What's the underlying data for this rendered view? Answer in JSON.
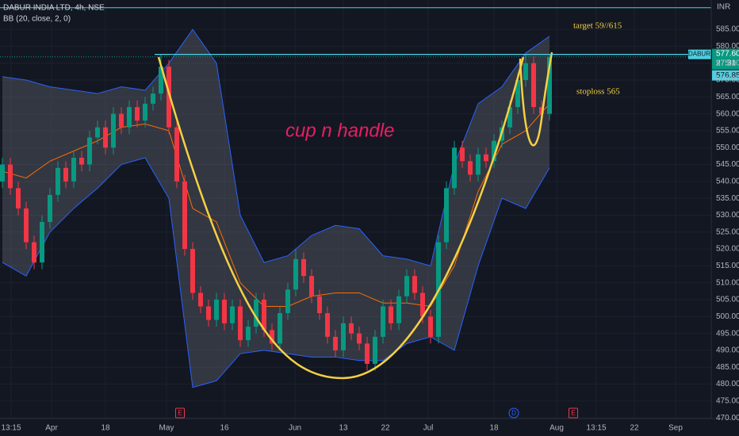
{
  "chart_data": {
    "type": "candlestick",
    "title": "DABUR INDIA LTD, 4h, NSE",
    "subtitle": "BB (20, close, 2, 0)",
    "currency": "INR",
    "annotations": {
      "target": "target 59//615",
      "stoploss": "stoploss 565",
      "pattern": "cup n handle"
    },
    "colors": {
      "up": "#089981",
      "down": "#f23645",
      "band": "#2962ff",
      "band_fill": "#787b86",
      "basis": "#ff6d00",
      "level": "#4dd0e1",
      "pattern": "#f5d142"
    },
    "grid": true,
    "xlim": [
      -0.3,
      89.4
    ],
    "ylim": [
      469.8,
      593.7
    ],
    "xticks": [
      {
        "value": 1.1,
        "label": "13:15"
      },
      {
        "value": 6.2,
        "label": "Apr"
      },
      {
        "value": 13,
        "label": "18"
      },
      {
        "value": 20.7,
        "label": "May"
      },
      {
        "value": 28,
        "label": "16"
      },
      {
        "value": 36.9,
        "label": "Jun"
      },
      {
        "value": 43,
        "label": "13"
      },
      {
        "value": 48.3,
        "label": "22"
      },
      {
        "value": 53.7,
        "label": "Jul"
      },
      {
        "value": 62,
        "label": "18"
      },
      {
        "value": 69.9,
        "label": "Aug"
      },
      {
        "value": 74.9,
        "label": "13:15"
      },
      {
        "value": 79.7,
        "label": "22"
      },
      {
        "value": 84.9,
        "label": "Sep"
      }
    ],
    "yticks": [
      {
        "value": 470,
        "label": "470.00"
      },
      {
        "value": 475,
        "label": "475.00"
      },
      {
        "value": 480,
        "label": "480.00"
      },
      {
        "value": 485,
        "label": "485.00"
      },
      {
        "value": 490,
        "label": "490.00"
      },
      {
        "value": 495,
        "label": "495.00"
      },
      {
        "value": 500,
        "label": "500.00"
      },
      {
        "value": 505,
        "label": "505.00"
      },
      {
        "value": 510,
        "label": "510.00"
      },
      {
        "value": 515,
        "label": "515.00"
      },
      {
        "value": 520,
        "label": "520.00"
      },
      {
        "value": 525,
        "label": "525.00"
      },
      {
        "value": 530,
        "label": "530.00"
      },
      {
        "value": 535,
        "label": "535.00"
      },
      {
        "value": 540,
        "label": "540.00"
      },
      {
        "value": 545,
        "label": "545.00"
      },
      {
        "value": 550,
        "label": "550.00"
      },
      {
        "value": 555,
        "label": "555.00"
      },
      {
        "value": 560,
        "label": "560.00"
      },
      {
        "value": 565,
        "label": "565.00"
      },
      {
        "value": 570,
        "label": "570.00"
      },
      {
        "value": 575,
        "label": "575.00"
      },
      {
        "value": 580,
        "label": "580.00"
      },
      {
        "value": 585,
        "label": "585.00"
      }
    ],
    "candles": {
      "open": [
        540,
        545,
        538,
        532,
        522,
        516,
        528,
        536,
        544,
        540,
        547,
        545,
        553,
        556,
        550,
        560,
        556,
        562,
        558,
        563,
        566,
        574,
        556,
        540,
        520,
        507,
        503,
        499,
        505,
        498,
        503,
        493,
        497,
        505,
        496,
        492,
        501,
        508,
        517,
        512,
        506,
        501,
        494,
        490,
        498,
        495,
        492,
        486,
        494,
        503,
        498,
        506,
        512,
        507,
        500,
        494,
        522,
        538,
        550,
        546,
        542,
        548,
        546,
        552,
        556,
        562,
        570,
        575,
        562,
        560
      ],
      "high": [
        547,
        547,
        540,
        534,
        524,
        530,
        538,
        546,
        546,
        549,
        549,
        555,
        558,
        558,
        562,
        562,
        564,
        564,
        565,
        568,
        577.5,
        576,
        558,
        542,
        522,
        509,
        505,
        507,
        507,
        505,
        505,
        499,
        507,
        507,
        498,
        503,
        510,
        520,
        519,
        514,
        508,
        503,
        496,
        500,
        500,
        497,
        494,
        496,
        505,
        505,
        508,
        514,
        514,
        509,
        502,
        524,
        540,
        552,
        552,
        548,
        550,
        550,
        554,
        558,
        564,
        572,
        577.5,
        577,
        564,
        577.6
      ],
      "low": [
        538,
        536,
        530,
        520,
        514,
        514,
        526,
        534,
        538,
        538,
        543,
        543,
        551,
        548,
        548,
        554,
        554,
        556,
        556,
        561,
        564,
        554,
        538,
        518,
        505,
        501,
        497,
        497,
        496,
        496,
        491,
        491,
        495,
        494,
        490,
        490,
        499,
        506,
        510,
        504,
        499,
        492,
        488,
        488,
        493,
        490,
        484,
        484,
        492,
        496,
        496,
        504,
        505,
        498,
        492,
        492,
        520,
        536,
        544,
        540,
        540,
        544,
        544,
        550,
        554,
        560,
        568,
        560,
        558,
        558
      ],
      "close": [
        545,
        538,
        532,
        522,
        516,
        528,
        536,
        544,
        540,
        547,
        545,
        553,
        556,
        550,
        560,
        556,
        562,
        558,
        563,
        566,
        574,
        556,
        540,
        520,
        507,
        503,
        499,
        505,
        498,
        503,
        493,
        497,
        505,
        496,
        492,
        501,
        508,
        517,
        512,
        506,
        501,
        494,
        490,
        498,
        495,
        492,
        486,
        494,
        503,
        498,
        506,
        512,
        507,
        500,
        494,
        522,
        538,
        550,
        546,
        542,
        548,
        546,
        552,
        556,
        562,
        570,
        575,
        562,
        560,
        576.85
      ]
    },
    "bb": {
      "x": [
        0,
        3,
        6,
        9,
        12,
        15,
        18,
        21,
        24,
        27,
        30,
        33,
        36,
        39,
        42,
        45,
        48,
        51,
        54,
        57,
        60,
        63,
        66,
        69
      ],
      "upper": [
        571,
        570,
        568,
        567,
        566,
        568,
        567,
        575,
        585,
        575,
        530,
        516,
        518,
        524,
        527,
        526,
        518,
        517,
        515,
        545,
        563,
        568,
        578,
        583
      ],
      "basis": [
        543,
        541,
        546,
        549,
        552,
        556,
        557,
        555,
        532,
        528,
        510,
        503,
        503,
        506,
        507,
        507,
        504,
        504,
        503,
        515,
        537,
        551,
        555,
        563
      ],
      "lower": [
        516,
        512,
        525,
        532,
        538,
        545,
        547,
        535,
        479,
        481,
        489,
        490,
        489,
        488,
        488,
        487,
        487,
        492,
        494,
        490,
        515,
        535,
        532,
        544
      ]
    },
    "level": {
      "value": 577.6,
      "label": "577.60",
      "symbol": "DABUR",
      "start": 19.2
    },
    "top_line": 591.4,
    "countdown": "27:31",
    "last_price": {
      "value": 576.85,
      "label": "576.85"
    },
    "events": [
      {
        "label": "E",
        "x": 22.4
      },
      {
        "label": "D",
        "x": 64.5
      },
      {
        "label": "E",
        "x": 72
      }
    ]
  }
}
